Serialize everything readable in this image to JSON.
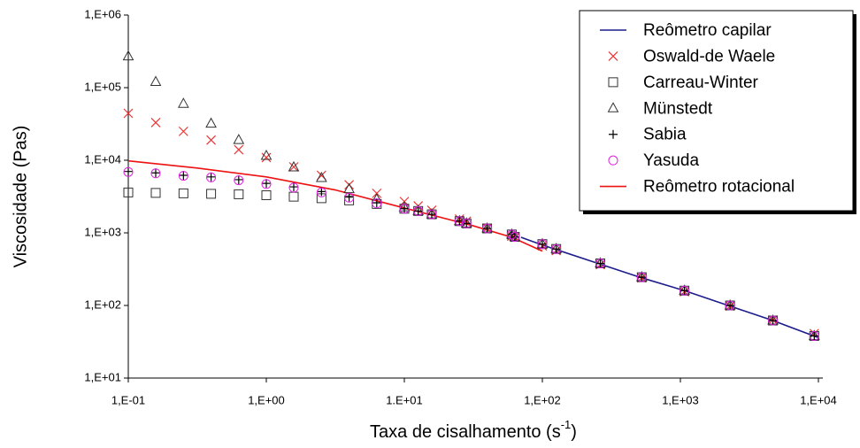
{
  "chart_data": {
    "type": "scatter",
    "x_label": [
      "Taxa de cisalhamento (s",
      "-1",
      ")"
    ],
    "y_label": "Viscosidade (Pas)",
    "xscale": "log",
    "yscale": "log",
    "xlim": [
      0.1,
      10000
    ],
    "ylim": [
      10,
      1000000
    ],
    "xticks": [
      {
        "value": 0.1,
        "label": "1,E-01"
      },
      {
        "value": 1,
        "label": "1,E+00"
      },
      {
        "value": 10,
        "label": "1.E+01"
      },
      {
        "value": 100,
        "label": "1,E+02"
      },
      {
        "value": 1000,
        "label": "1,E+03"
      },
      {
        "value": 10000,
        "label": "1,E+04"
      }
    ],
    "yticks": [
      {
        "value": 10,
        "label": "1,E+01"
      },
      {
        "value": 100,
        "label": "1,E+02"
      },
      {
        "value": 1000,
        "label": "1,E+03"
      },
      {
        "value": 10000,
        "label": "1,E+04"
      },
      {
        "value": 100000,
        "label": "1,E+05"
      },
      {
        "value": 1000000,
        "label": "1,E+06"
      }
    ],
    "legend": "upper-right",
    "series": [
      {
        "name": "Reômetro capilar",
        "color": "#1c1c8c",
        "marker": "line",
        "x": [
          70,
          100,
          263,
          525,
          1070,
          2290,
          4680,
          10000
        ],
        "values": [
          870,
          680,
          370,
          240,
          160,
          98,
          62,
          36
        ]
      },
      {
        "name": "Oswald-de Waele",
        "color": "#ee3333",
        "marker": "x",
        "x": [
          0.1,
          0.158,
          0.251,
          0.398,
          0.631,
          1,
          1.58,
          2.51,
          3.98,
          6.31,
          10,
          12.6,
          15.8,
          25.1,
          28.2,
          39.8,
          60,
          63.1,
          100,
          126,
          263,
          525,
          1070,
          2290,
          4680,
          9330
        ],
        "values": [
          44300,
          33000,
          25000,
          19000,
          14000,
          10900,
          8100,
          6200,
          4600,
          3500,
          2700,
          2350,
          2050,
          1550,
          1450,
          1160,
          900,
          870,
          660,
          570,
          365,
          240,
          155,
          98,
          63,
          41
        ]
      },
      {
        "name": "Carreau-Winter",
        "color": "#333333",
        "marker": "square",
        "x": [
          0.1,
          0.158,
          0.251,
          0.398,
          0.631,
          1,
          1.58,
          2.51,
          3.98,
          6.31,
          10,
          12.6,
          15.8,
          25.1,
          28.2,
          39.8,
          60,
          63.1,
          100,
          126,
          263,
          525,
          1070,
          2290,
          4680,
          9330
        ],
        "values": [
          3600,
          3550,
          3500,
          3450,
          3400,
          3300,
          3150,
          3000,
          2800,
          2500,
          2150,
          2000,
          1800,
          1450,
          1350,
          1150,
          950,
          880,
          700,
          600,
          380,
          245,
          160,
          100,
          62,
          38
        ]
      },
      {
        "name": "Münstedt",
        "color": "#333333",
        "marker": "triangle",
        "x": [
          0.1,
          0.158,
          0.251,
          0.398,
          0.631,
          1,
          1.58,
          2.51,
          3.98,
          6.31,
          10,
          12.6,
          15.8,
          25.1,
          28.2,
          39.8,
          60,
          63.1,
          100,
          126,
          263,
          525,
          1070,
          2290,
          4680,
          9330
        ],
        "values": [
          270000,
          120000,
          60000,
          32000,
          19000,
          11500,
          8000,
          5700,
          4000,
          2900,
          2250,
          2000,
          1800,
          1450,
          1350,
          1150,
          950,
          880,
          700,
          600,
          380,
          245,
          160,
          100,
          62,
          38
        ]
      },
      {
        "name": "Sabia",
        "color": "#000000",
        "marker": "plus",
        "x": [
          0.1,
          0.158,
          0.251,
          0.398,
          0.631,
          1,
          1.58,
          2.51,
          3.98,
          6.31,
          10,
          12.6,
          15.8,
          25.1,
          28.2,
          39.8,
          60,
          63.1,
          100,
          126,
          263,
          525,
          1070,
          2290,
          4680,
          9330
        ],
        "values": [
          7000,
          6700,
          6200,
          5900,
          5400,
          4800,
          4300,
          3700,
          3100,
          2600,
          2150,
          2000,
          1800,
          1450,
          1350,
          1150,
          950,
          880,
          700,
          600,
          380,
          245,
          160,
          100,
          62,
          38
        ]
      },
      {
        "name": "Yasuda",
        "color": "#e020e0",
        "marker": "circle",
        "x": [
          0.1,
          0.158,
          0.251,
          0.398,
          0.631,
          1,
          1.58,
          2.51,
          3.98,
          6.31,
          10,
          12.6,
          15.8,
          25.1,
          28.2,
          39.8,
          60,
          63.1,
          100,
          126,
          263,
          525,
          1070,
          2290,
          4680,
          9330
        ],
        "values": [
          6900,
          6600,
          6100,
          5800,
          5300,
          4700,
          4200,
          3600,
          3050,
          2550,
          2150,
          2000,
          1800,
          1450,
          1350,
          1150,
          950,
          880,
          700,
          600,
          380,
          245,
          160,
          100,
          62,
          38
        ]
      },
      {
        "name": "Reômetro rotacional",
        "color": "#ee1111",
        "marker": "line",
        "x": [
          0.1,
          0.316,
          1,
          3.16,
          10,
          31.6,
          60,
          100
        ],
        "values": [
          9800,
          7800,
          5900,
          3900,
          2200,
          1250,
          870,
          560
        ]
      }
    ]
  }
}
